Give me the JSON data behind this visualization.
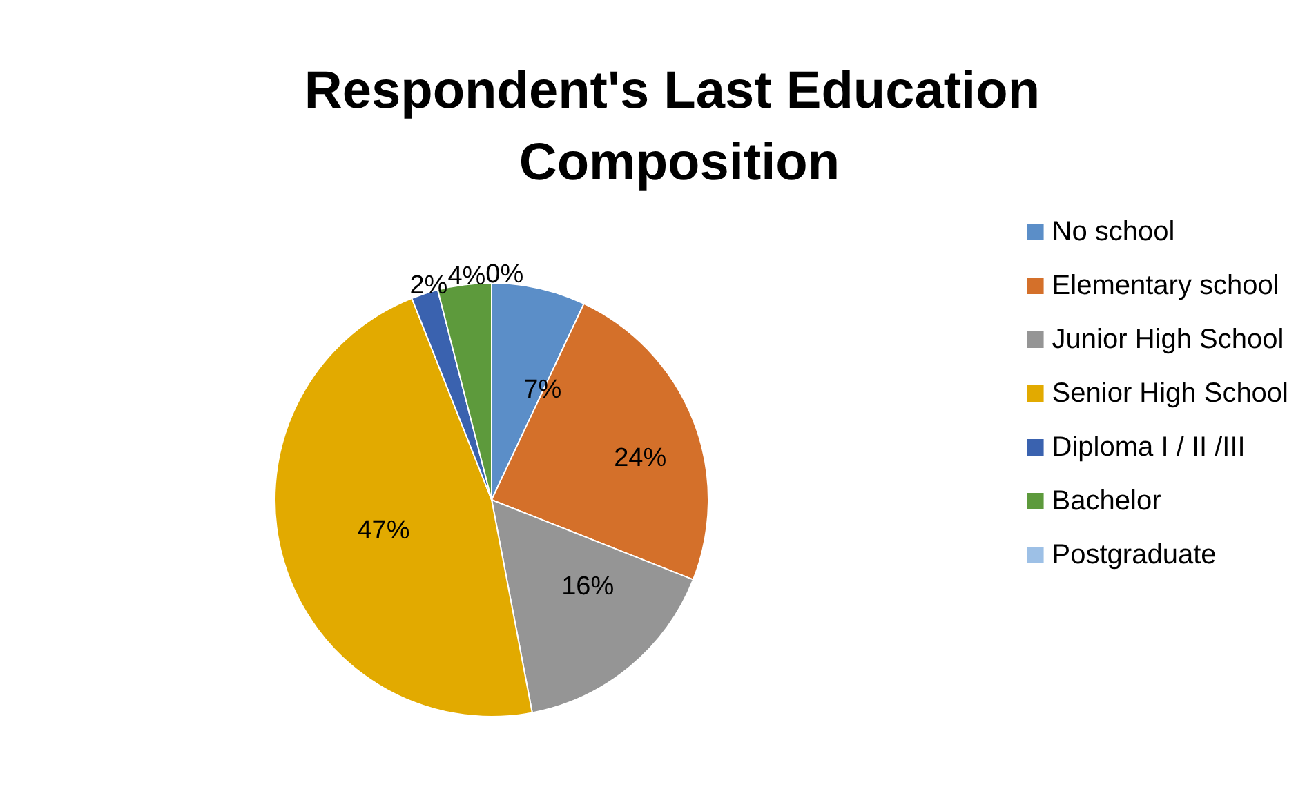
{
  "chart_data": {
    "type": "pie",
    "title": "Respondent's Last Education Composition",
    "categories": [
      "No school",
      "Elementary school",
      "Junior High School",
      "Senior High School",
      "Diploma I / II /III",
      "Bachelor",
      "Postgraduate"
    ],
    "values": [
      7,
      24,
      16,
      47,
      2,
      4,
      0
    ],
    "colors": [
      "#5b8ec8",
      "#d4702a",
      "#959595",
      "#e2aa00",
      "#3a62af",
      "#5d9a3c",
      "#9dc0e6"
    ],
    "data_labels": true,
    "value_labels": [
      "7%",
      "24%",
      "16%",
      "47%",
      "2%",
      "4%",
      "0%"
    ],
    "legend": "right"
  }
}
